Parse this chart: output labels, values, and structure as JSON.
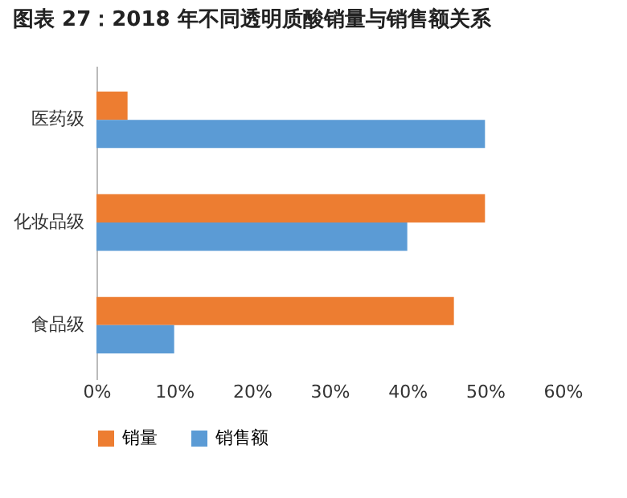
{
  "chart_data": {
    "type": "bar",
    "orientation": "horizontal",
    "title": "图表 27：2018 年不同透明质酸销量与销售额关系",
    "categories": [
      "医药级",
      "化妆品级",
      "食品级"
    ],
    "series": [
      {
        "name": "销量",
        "color": "#ed7d31",
        "values": [
          4,
          50,
          46
        ]
      },
      {
        "name": "销售额",
        "color": "#5b9bd5",
        "values": [
          50,
          40,
          10
        ]
      }
    ],
    "xlim": [
      0,
      60
    ],
    "xticks": [
      {
        "value": 0,
        "label": "0%"
      },
      {
        "value": 10,
        "label": "10%"
      },
      {
        "value": 20,
        "label": "20%"
      },
      {
        "value": 30,
        "label": "30%"
      },
      {
        "value": 40,
        "label": "40%"
      },
      {
        "value": 50,
        "label": "50%"
      },
      {
        "value": 60,
        "label": "60%"
      }
    ],
    "grid": false,
    "legend": "bottom"
  }
}
